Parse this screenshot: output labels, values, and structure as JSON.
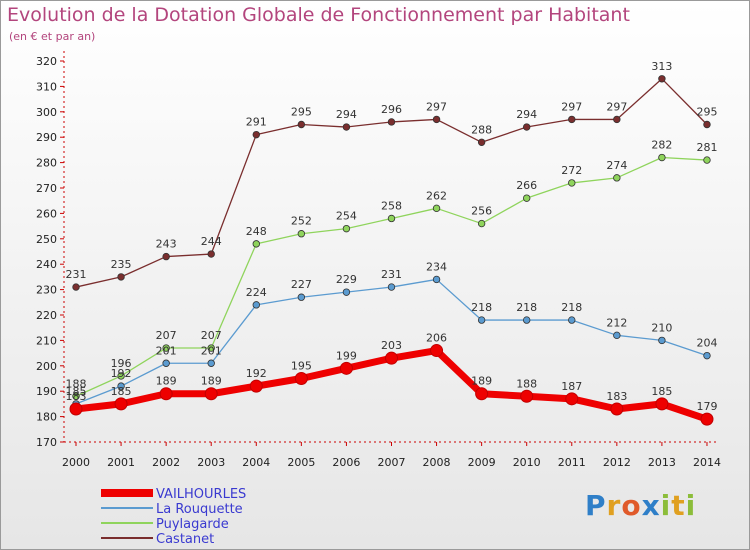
{
  "title": "Evolution de la Dotation Globale de Fonctionnement par Habitant",
  "subtitle": "(en € et par an)",
  "logo_text": "Proxiti",
  "chart_data": {
    "type": "line",
    "x": [
      2000,
      2001,
      2002,
      2003,
      2004,
      2005,
      2006,
      2007,
      2008,
      2009,
      2010,
      2011,
      2012,
      2013,
      2014
    ],
    "ylim": [
      170,
      320
    ],
    "yticks": [
      170,
      180,
      190,
      200,
      210,
      220,
      230,
      240,
      250,
      260,
      270,
      280,
      290,
      300,
      310,
      320
    ],
    "grid": false,
    "legend_position": "bottom-left",
    "series": [
      {
        "name": "Castanet",
        "color": "#7a2e2e",
        "values": [
          231,
          235,
          243,
          244,
          291,
          295,
          294,
          296,
          297,
          288,
          294,
          297,
          297,
          313,
          295
        ]
      },
      {
        "name": "Puylagarde",
        "color": "#8fd45c",
        "values": [
          188,
          196,
          207,
          207,
          248,
          252,
          254,
          258,
          262,
          256,
          266,
          272,
          274,
          282,
          281
        ]
      },
      {
        "name": "La Rouquette",
        "color": "#5b9bd0",
        "values": [
          185,
          192,
          201,
          201,
          224,
          227,
          229,
          231,
          234,
          218,
          218,
          218,
          212,
          210,
          204
        ]
      },
      {
        "name": "VAILHOURLES",
        "color": "#ee0000",
        "values": [
          183,
          185,
          189,
          189,
          192,
          195,
          199,
          203,
          206,
          189,
          188,
          187,
          183,
          185,
          179
        ]
      }
    ],
    "legend_order": [
      "VAILHOURLES",
      "La Rouquette",
      "Puylagarde",
      "Castanet"
    ]
  }
}
